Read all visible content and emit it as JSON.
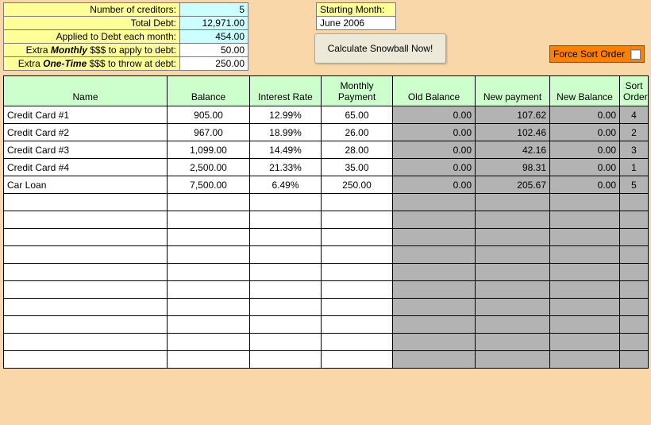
{
  "summary": {
    "rows": [
      {
        "label": "Number of creditors:",
        "value": "5",
        "value_bg": "cyan",
        "bold_italic_word": ""
      },
      {
        "label": "Total Debt:",
        "value": "12,971.00",
        "value_bg": "cyan",
        "bold_italic_word": ""
      },
      {
        "label": "Applied to Debt each month:",
        "value": "454.00",
        "value_bg": "cyan",
        "bold_italic_word": ""
      },
      {
        "label_pre": "Extra ",
        "label_bold": "Monthly",
        "label_post": " $$$ to apply to debt:",
        "value": "50.00",
        "value_bg": "white"
      },
      {
        "label_pre": "Extra ",
        "label_bold": "One-Time",
        "label_post": " $$$ to throw at debt:",
        "value": "250.00",
        "value_bg": "white"
      }
    ]
  },
  "starting_month": {
    "label": "Starting Month:",
    "value": "June 2006"
  },
  "buttons": {
    "calculate": "Calculate Snowball Now!",
    "force_sort": "Force Sort Order"
  },
  "grid": {
    "headers": {
      "name": "Name",
      "balance": "Balance",
      "interest": "Interest Rate",
      "monthly_payment": "Monthly\nPayment",
      "old_balance": "Old Balance",
      "new_payment": "New payment",
      "new_balance": "New Balance",
      "sort_order": "Sort\nOrder"
    },
    "rows": [
      {
        "name": "Credit Card #1",
        "balance": "905.00",
        "interest": "12.99%",
        "mpay": "65.00",
        "old": "0.00",
        "newp": "107.62",
        "newb": "0.00",
        "sort": "4"
      },
      {
        "name": "Credit Card #2",
        "balance": "967.00",
        "interest": "18.99%",
        "mpay": "26.00",
        "old": "0.00",
        "newp": "102.46",
        "newb": "0.00",
        "sort": "2"
      },
      {
        "name": "Credit Card #3",
        "balance": "1,099.00",
        "interest": "14.49%",
        "mpay": "28.00",
        "old": "0.00",
        "newp": "42.16",
        "newb": "0.00",
        "sort": "3"
      },
      {
        "name": "Credit Card #4",
        "balance": "2,500.00",
        "interest": "21.33%",
        "mpay": "35.00",
        "old": "0.00",
        "newp": "98.31",
        "newb": "0.00",
        "sort": "1"
      },
      {
        "name": "Car Loan",
        "balance": "7,500.00",
        "interest": "6.49%",
        "mpay": "250.00",
        "old": "0.00",
        "newp": "205.67",
        "newb": "0.00",
        "sort": "5"
      }
    ],
    "empty_row_count": 10
  },
  "colors": {
    "page_bg": "#fad7a9",
    "label_bg": "#ffff99",
    "input_cyan": "#ccffff",
    "header_bg": "#ccffcc",
    "grey_cells": "#b3b3b3",
    "force_sort_bg": "#ff8000",
    "border": "#000000"
  }
}
